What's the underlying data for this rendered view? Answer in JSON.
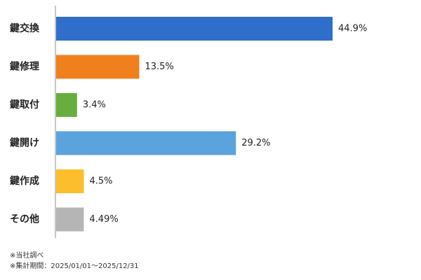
{
  "chart_data": {
    "type": "bar",
    "orientation": "horizontal",
    "categories": [
      "鍵交換",
      "鍵修理",
      "鍵取付",
      "鍵開け",
      "鍵作成",
      "その他"
    ],
    "values": [
      44.9,
      13.5,
      3.4,
      29.2,
      4.5,
      4.49
    ],
    "value_labels": [
      "44.9%",
      "13.5%",
      "3.4%",
      "29.2%",
      "4.5%",
      "4.49%"
    ],
    "colors": [
      "#2f6fcb",
      "#f07f1e",
      "#67ae3f",
      "#5ba3dc",
      "#fdbe2d",
      "#b5b5b5"
    ],
    "xlim": [
      0,
      50
    ],
    "grid": false,
    "legend": "none"
  },
  "notes": {
    "source": "※当社調べ",
    "period": "※集計期間：2025/01/01～2025/12/31"
  }
}
